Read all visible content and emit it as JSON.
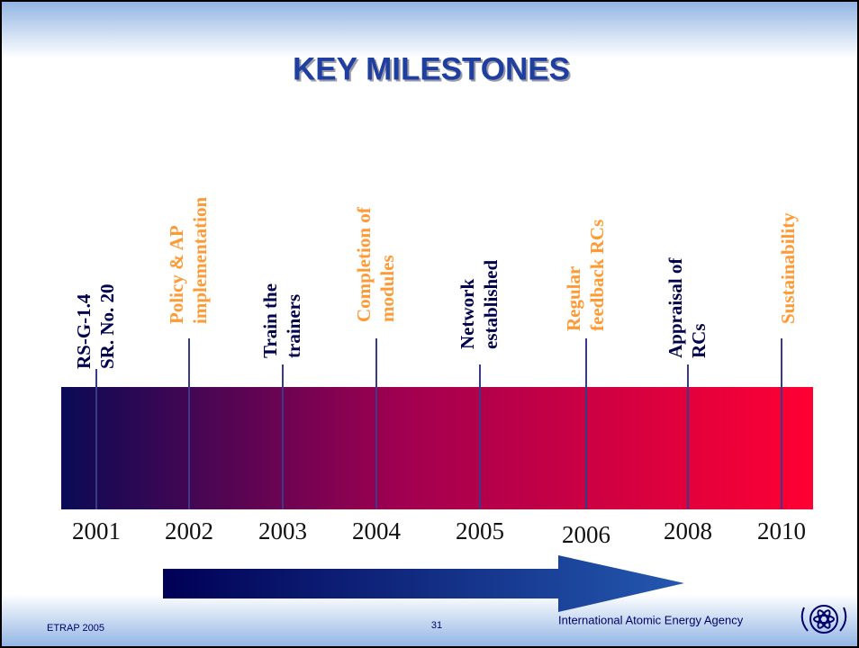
{
  "title": "KEY MILESTONES",
  "milestones": [
    {
      "lines": [
        "RS-G-1.4",
        "SR. No. 20"
      ],
      "year": "2001",
      "color": "#00004d"
    },
    {
      "lines": [
        "Policy & AP",
        "implementation"
      ],
      "year": "2002",
      "color": "#ff9933"
    },
    {
      "lines": [
        "Train the",
        "trainers"
      ],
      "year": "2003",
      "color": "#00004d"
    },
    {
      "lines": [
        "Completion of",
        "modules"
      ],
      "year": "2004",
      "color": "#ff9933"
    },
    {
      "lines": [
        "Network",
        "established"
      ],
      "year": "2005",
      "color": "#00004d"
    },
    {
      "lines": [
        "Regular",
        "feedback RCs"
      ],
      "year": "2006",
      "color": "#ff9933"
    },
    {
      "lines": [
        "Appraisal of",
        "RCs"
      ],
      "year": "2008",
      "color": "#00004d"
    },
    {
      "lines": [
        "Sustainability"
      ],
      "year": "2010",
      "color": "#ff9933"
    }
  ],
  "footer": {
    "left": "ETRAP 2005",
    "page": "31",
    "org": "International Atomic Energy Agency"
  }
}
